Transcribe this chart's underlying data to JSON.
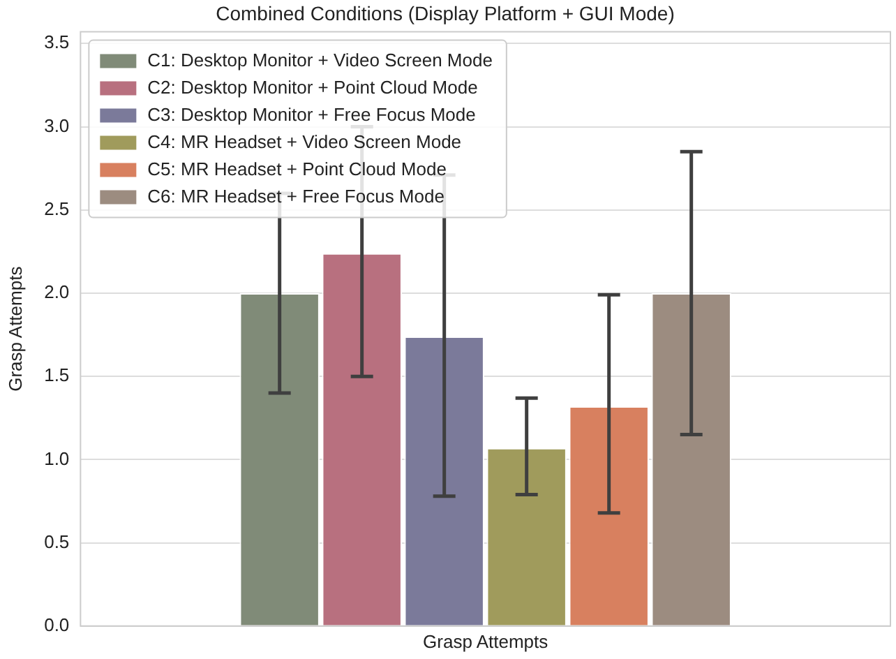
{
  "chart_data": {
    "type": "bar",
    "title": "Combined Conditions (Display Platform + GUI Mode)",
    "xlabel": "Grasp Attempts",
    "ylabel": "Grasp Attempts",
    "categories": [
      null
    ],
    "series": [
      {
        "name": "C1: Desktop Monitor + Video Screen Mode",
        "color": "#808b78",
        "values": [
          2.0
        ],
        "errors": [
          [
            1.4,
            2.6
          ]
        ]
      },
      {
        "name": "C2: Desktop Monitor + Point Cloud Mode",
        "color": "#b8707f",
        "values": [
          2.24
        ],
        "errors": [
          [
            1.5,
            3.0
          ]
        ]
      },
      {
        "name": "C3: Desktop Monitor + Free Focus Mode",
        "color": "#7b7a9a",
        "values": [
          1.74
        ],
        "errors": [
          [
            0.78,
            2.71
          ]
        ]
      },
      {
        "name": "C4: MR Headset + Video Screen Mode",
        "color": "#a09b5c",
        "values": [
          1.07
        ],
        "errors": [
          [
            0.79,
            1.37
          ]
        ]
      },
      {
        "name": "C5: MR Headset + Point Cloud Mode",
        "color": "#d8805f",
        "values": [
          1.32
        ],
        "errors": [
          [
            0.68,
            1.99
          ]
        ]
      },
      {
        "name": "C6: MR Headset + Free Focus Mode",
        "color": "#9c8c80",
        "values": [
          2.0
        ],
        "errors": [
          [
            1.15,
            2.85
          ]
        ]
      }
    ],
    "ylim": [
      0,
      3.57
    ],
    "yticks": [
      {
        "value": 0,
        "label": "0.0"
      },
      0.5,
      {
        "value": 1,
        "label": "1.0"
      },
      1.5,
      {
        "value": 2,
        "label": "2.0"
      },
      2.5,
      {
        "value": 3,
        "label": "3.0"
      },
      3.5
    ],
    "grid": "y",
    "legend": "top left"
  }
}
